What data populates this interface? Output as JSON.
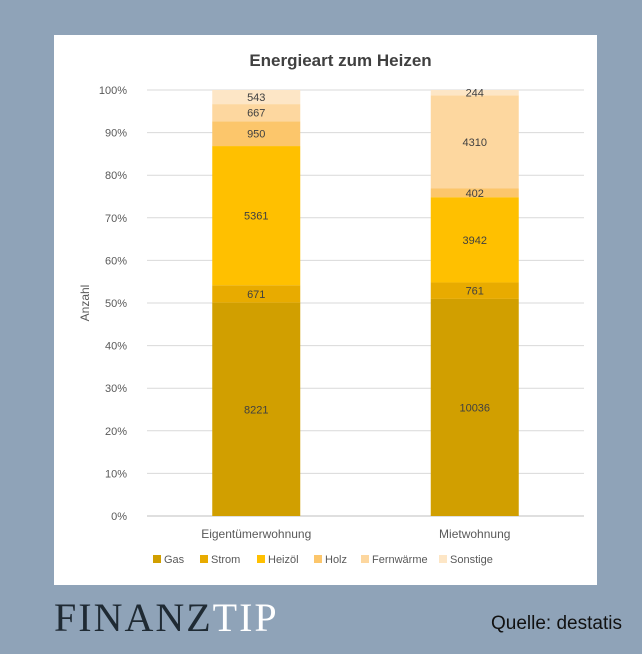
{
  "brand": {
    "part1": "FINANZ",
    "part2": "TIP"
  },
  "source": "Quelle: destatis",
  "colors": {
    "Gas": "#d19f00",
    "Strom": "#e8ab00",
    "Heizöl": "#ffc000",
    "Holz": "#fcc66b",
    "Fernwärme": "#fdd79f",
    "Sonstige": "#fde6c6"
  },
  "chart_data": {
    "type": "bar",
    "stacked": true,
    "normalized": true,
    "title": "Energieart zum Heizen",
    "ylabel": "Anzahl",
    "xlabel": "",
    "ylim": [
      0,
      100
    ],
    "yticks": [
      "0%",
      "10%",
      "20%",
      "30%",
      "40%",
      "50%",
      "60%",
      "70%",
      "80%",
      "90%",
      "100%"
    ],
    "grid": true,
    "legend": "bottom",
    "categories": [
      "Eigentümerwohnung",
      "Mietwohnung"
    ],
    "series": [
      {
        "name": "Gas",
        "values": [
          8221,
          10036
        ]
      },
      {
        "name": "Strom",
        "values": [
          671,
          761
        ]
      },
      {
        "name": "Heizöl",
        "values": [
          5361,
          3942
        ]
      },
      {
        "name": "Holz",
        "values": [
          950,
          402
        ]
      },
      {
        "name": "Fernwärme",
        "values": [
          667,
          4310
        ]
      },
      {
        "name": "Sonstige",
        "values": [
          543,
          244
        ]
      }
    ]
  }
}
